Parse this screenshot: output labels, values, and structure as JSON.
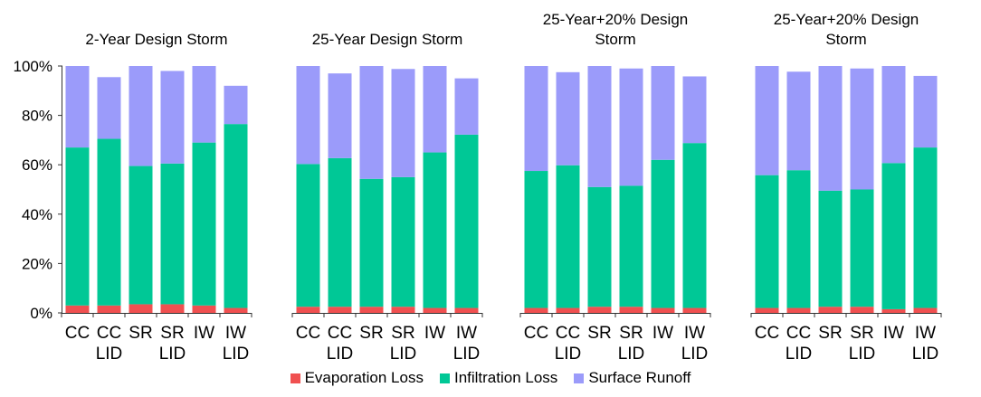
{
  "chart_data": {
    "type": "bar",
    "stacked": true,
    "y_ticks": [
      "0%",
      "20%",
      "40%",
      "60%",
      "80%",
      "100%"
    ],
    "ylim": [
      0,
      100
    ],
    "categories": [
      "CC",
      "CC LID",
      "SR",
      "SR LID",
      "IW",
      "IW LID"
    ],
    "category_lines": [
      [
        "CC"
      ],
      [
        "CC",
        "LID"
      ],
      [
        "SR"
      ],
      [
        "SR",
        "LID"
      ],
      [
        "IW"
      ],
      [
        "IW",
        "LID"
      ]
    ],
    "colors": {
      "Evaporation Loss": "#f05050",
      "Infiltration Loss": "#00c896",
      "Surface Runoff": "#9b9bfa"
    },
    "legend": [
      "Evaporation Loss",
      "Infiltration Loss",
      "Surface Runoff"
    ],
    "legend_position": "bottom",
    "groups": [
      {
        "title_lines": [
          "2-Year  Design  Storm"
        ],
        "series": [
          {
            "name": "Evaporation Loss",
            "values": [
              3.0,
              3.0,
              3.5,
              3.5,
              3.0,
              2.0
            ]
          },
          {
            "name": "Infiltration Loss",
            "values": [
              64.0,
              67.5,
              56.0,
              57.0,
              66.0,
              74.5
            ]
          },
          {
            "name": "Surface Runoff",
            "values": [
              33.0,
              25.0,
              40.5,
              37.5,
              31.0,
              15.5
            ]
          }
        ]
      },
      {
        "title_lines": [
          "25-Year  Design  Storm"
        ],
        "series": [
          {
            "name": "Evaporation Loss",
            "values": [
              2.5,
              2.5,
              2.5,
              2.5,
              2.0,
              2.0
            ]
          },
          {
            "name": "Infiltration Loss",
            "values": [
              57.8,
              60.2,
              51.8,
              52.5,
              63.0,
              70.2
            ]
          },
          {
            "name": "Surface Runoff",
            "values": [
              39.7,
              34.3,
              45.7,
              43.8,
              35.0,
              22.8
            ]
          }
        ]
      },
      {
        "title_lines": [
          "25-Year+20%  Design",
          "Storm"
        ],
        "series": [
          {
            "name": "Evaporation Loss",
            "values": [
              2.0,
              2.0,
              2.5,
              2.5,
              2.0,
              2.0
            ]
          },
          {
            "name": "Infiltration Loss",
            "values": [
              55.5,
              57.8,
              48.5,
              49.0,
              60.0,
              66.8
            ]
          },
          {
            "name": "Surface Runoff",
            "values": [
              42.5,
              37.7,
              49.0,
              47.5,
              38.0,
              27.0
            ]
          }
        ]
      },
      {
        "title_lines": [
          "25-Year+20%  Design",
          "Storm"
        ],
        "series": [
          {
            "name": "Evaporation Loss",
            "values": [
              2.0,
              2.0,
              2.5,
              2.5,
              1.5,
              2.0
            ]
          },
          {
            "name": "Infiltration Loss",
            "values": [
              53.8,
              55.8,
              47.0,
              47.5,
              59.2,
              65.0
            ]
          },
          {
            "name": "Surface Runoff",
            "values": [
              44.2,
              39.9,
              50.5,
              49.0,
              39.3,
              29.0
            ]
          }
        ]
      }
    ]
  }
}
